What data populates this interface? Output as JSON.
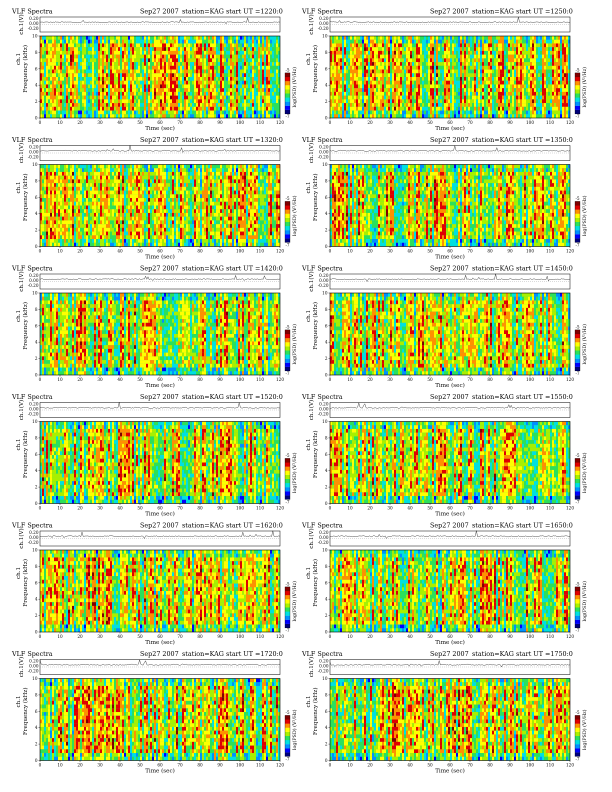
{
  "chart_data": [
    {
      "type": "heatmap",
      "title": "VLF Spectra",
      "date": "Sep27 2007",
      "station": "station=KAG",
      "start_ut": "start  UT =1220:0",
      "top_panel": {
        "ylabel": "ch.1(V)",
        "yticks": [
          "0.20",
          "0.00",
          "-0.20"
        ]
      },
      "ylabel_top": "ch.1",
      "ylabel": "Frequency (kHz)",
      "xlabel": "Time  (sec)",
      "xticks": [
        0,
        10,
        20,
        30,
        40,
        50,
        60,
        70,
        80,
        90,
        100,
        110,
        120
      ],
      "yticks": [
        0,
        2,
        4,
        6,
        8,
        10
      ],
      "xlim": [
        0,
        120
      ],
      "ylim": [
        0,
        10
      ],
      "colorbar_label": "log(PSD) (V²/Hz)"
    },
    {
      "type": "heatmap",
      "title": "VLF Spectra",
      "date": "Sep27 2007",
      "station": "station=KAG",
      "start_ut": "start  UT =1250:0",
      "top_panel": {
        "ylabel": "ch.1(V)",
        "yticks": [
          "0.20",
          "0.00",
          "-0.20"
        ]
      },
      "ylabel_top": "ch.1",
      "ylabel": "Frequency (kHz)",
      "xlabel": "Time  (sec)",
      "xticks": [
        0,
        10,
        20,
        30,
        40,
        50,
        60,
        70,
        80,
        90,
        100,
        110,
        120
      ],
      "yticks": [
        0,
        2,
        4,
        6,
        8,
        10
      ],
      "xlim": [
        0,
        120
      ],
      "ylim": [
        0,
        10
      ],
      "colorbar_label": "log(PSD) (V²/Hz)"
    },
    {
      "type": "heatmap",
      "title": "VLF Spectra",
      "date": "Sep27 2007",
      "station": "station=KAG",
      "start_ut": "start  UT =1320:0",
      "top_panel": {
        "ylabel": "ch.1(V)",
        "yticks": [
          "0.20",
          "0.00",
          "-0.20"
        ]
      },
      "ylabel_top": "ch.1",
      "ylabel": "Frequency (kHz)",
      "xlabel": "Time  (sec)",
      "xticks": [
        0,
        10,
        20,
        30,
        40,
        50,
        60,
        70,
        80,
        90,
        100,
        110,
        120
      ],
      "yticks": [
        0,
        2,
        4,
        6,
        8,
        10
      ],
      "xlim": [
        0,
        120
      ],
      "ylim": [
        0,
        10
      ],
      "colorbar_label": "log(PSD) (V²/Hz)"
    },
    {
      "type": "heatmap",
      "title": "VLF Spectra",
      "date": "Sep27 2007",
      "station": "station=KAG",
      "start_ut": "start  UT =1350:0",
      "top_panel": {
        "ylabel": "ch.1(V)",
        "yticks": [
          "0.20",
          "0.00",
          "-0.20"
        ]
      },
      "ylabel_top": "ch.1",
      "ylabel": "Frequency (kHz)",
      "xlabel": "Time  (sec)",
      "xticks": [
        0,
        10,
        20,
        30,
        40,
        50,
        60,
        70,
        80,
        90,
        100,
        110,
        120
      ],
      "yticks": [
        0,
        2,
        4,
        6,
        8,
        10
      ],
      "xlim": [
        0,
        120
      ],
      "ylim": [
        0,
        10
      ],
      "colorbar_label": "log(PSD) (V²/Hz)"
    },
    {
      "type": "heatmap",
      "title": "VLF Spectra",
      "date": "Sep27 2007",
      "station": "station=KAG",
      "start_ut": "start  UT =1420:0",
      "top_panel": {
        "ylabel": "ch.1(V)",
        "yticks": [
          "0.20",
          "0.00",
          "-0.20"
        ]
      },
      "ylabel_top": "ch.1",
      "ylabel": "Frequency (kHz)",
      "xlabel": "Time  (sec)",
      "xticks": [
        0,
        10,
        20,
        30,
        40,
        50,
        60,
        70,
        80,
        90,
        100,
        110,
        120
      ],
      "yticks": [
        0,
        2,
        4,
        6,
        8,
        10
      ],
      "xlim": [
        0,
        120
      ],
      "ylim": [
        0,
        10
      ],
      "colorbar_label": "log(PSD) (V²/Hz)"
    },
    {
      "type": "heatmap",
      "title": "VLF Spectra",
      "date": "Sep27 2007",
      "station": "station=KAG",
      "start_ut": "start  UT =1450:0",
      "top_panel": {
        "ylabel": "ch.1(V)",
        "yticks": [
          "0.20",
          "0.00",
          "-0.20"
        ]
      },
      "ylabel_top": "ch.1",
      "ylabel": "Frequency (kHz)",
      "xlabel": "Time  (sec)",
      "xticks": [
        0,
        10,
        20,
        30,
        40,
        50,
        60,
        70,
        80,
        90,
        100,
        110,
        120
      ],
      "yticks": [
        0,
        2,
        4,
        6,
        8,
        10
      ],
      "xlim": [
        0,
        120
      ],
      "ylim": [
        0,
        10
      ],
      "colorbar_label": "log(PSD) (V²/Hz)"
    },
    {
      "type": "heatmap",
      "title": "VLF Spectra",
      "date": "Sep27 2007",
      "station": "station=KAG",
      "start_ut": "start  UT =1520:0",
      "top_panel": {
        "ylabel": "ch.1(V)",
        "yticks": [
          "0.20",
          "0.00",
          "-0.20"
        ]
      },
      "ylabel_top": "ch.1",
      "ylabel": "Frequency (kHz)",
      "xlabel": "Time  (sec)",
      "xticks": [
        0,
        10,
        20,
        30,
        40,
        50,
        60,
        70,
        80,
        90,
        100,
        110,
        120
      ],
      "yticks": [
        0,
        2,
        4,
        6,
        8,
        10
      ],
      "xlim": [
        0,
        120
      ],
      "ylim": [
        0,
        10
      ],
      "colorbar_label": "log(PSD) (V²/Hz)"
    },
    {
      "type": "heatmap",
      "title": "VLF Spectra",
      "date": "Sep27 2007",
      "station": "station=KAG",
      "start_ut": "start  UT =1550:0",
      "top_panel": {
        "ylabel": "ch.1(V)",
        "yticks": [
          "0.20",
          "0.00",
          "-0.20"
        ]
      },
      "ylabel_top": "ch.1",
      "ylabel": "Frequency (kHz)",
      "xlabel": "Time  (sec)",
      "xticks": [
        0,
        10,
        20,
        30,
        40,
        50,
        60,
        70,
        80,
        90,
        100,
        110,
        120
      ],
      "yticks": [
        0,
        2,
        4,
        6,
        8,
        10
      ],
      "xlim": [
        0,
        120
      ],
      "ylim": [
        0,
        10
      ],
      "colorbar_label": "log(PSD) (V²/Hz)"
    },
    {
      "type": "heatmap",
      "title": "VLF Spectra",
      "date": "Sep27 2007",
      "station": "station=KAG",
      "start_ut": "start  UT =1620:0",
      "top_panel": {
        "ylabel": "ch.1(V)",
        "yticks": [
          "0.20",
          "0.00",
          "-0.20"
        ]
      },
      "ylabel_top": "ch.1",
      "ylabel": "Frequency (kHz)",
      "xlabel": "Time  (sec)",
      "xticks": [
        0,
        10,
        20,
        30,
        40,
        50,
        60,
        70,
        80,
        90,
        100,
        110,
        120
      ],
      "yticks": [
        0,
        2,
        4,
        6,
        8,
        10
      ],
      "xlim": [
        0,
        120
      ],
      "ylim": [
        0,
        10
      ],
      "colorbar_label": "log(PSD) (V²/Hz)"
    },
    {
      "type": "heatmap",
      "title": "VLF Spectra",
      "date": "Sep27 2007",
      "station": "station=KAG",
      "start_ut": "start  UT =1650:0",
      "top_panel": {
        "ylabel": "ch.1(V)",
        "yticks": [
          "0.20",
          "0.00",
          "-0.20"
        ]
      },
      "ylabel_top": "ch.1",
      "ylabel": "Frequency (kHz)",
      "xlabel": "Time  (sec)",
      "xticks": [
        0,
        10,
        20,
        30,
        40,
        50,
        60,
        70,
        80,
        90,
        100,
        110,
        120
      ],
      "yticks": [
        0,
        2,
        4,
        6,
        8,
        10
      ],
      "xlim": [
        0,
        120
      ],
      "ylim": [
        0,
        10
      ],
      "colorbar_label": "log(PSD) (V²/Hz)"
    },
    {
      "type": "heatmap",
      "title": "VLF Spectra",
      "date": "Sep27 2007",
      "station": "station=KAG",
      "start_ut": "start  UT =1720:0",
      "top_panel": {
        "ylabel": "ch.1(V)",
        "yticks": [
          "0.20",
          "0.00",
          "-0.20"
        ]
      },
      "ylabel_top": "ch.1",
      "ylabel": "Frequency (kHz)",
      "xlabel": "Time  (sec)",
      "xticks": [
        0,
        10,
        20,
        30,
        40,
        50,
        60,
        70,
        80,
        90,
        100,
        110,
        120
      ],
      "yticks": [
        0,
        2,
        4,
        6,
        8,
        10
      ],
      "xlim": [
        0,
        120
      ],
      "ylim": [
        0,
        10
      ],
      "colorbar_label": "log(PSD) (V²/Hz)"
    },
    {
      "type": "heatmap",
      "title": "VLF Spectra",
      "date": "Sep27 2007",
      "station": "station=KAG",
      "start_ut": "start  UT =1750:0",
      "top_panel": {
        "ylabel": "ch.1(V)",
        "yticks": [
          "0.20",
          "0.00",
          "-0.20"
        ]
      },
      "ylabel_top": "ch.1",
      "ylabel": "Frequency (kHz)",
      "xlabel": "Time  (sec)",
      "xticks": [
        0,
        10,
        20,
        30,
        40,
        50,
        60,
        70,
        80,
        90,
        100,
        110,
        120
      ],
      "yticks": [
        0,
        2,
        4,
        6,
        8,
        10
      ],
      "xlim": [
        0,
        120
      ],
      "ylim": [
        0,
        10
      ],
      "colorbar_label": "log(PSD) (V²/Hz)"
    }
  ],
  "colormap": [
    "#00007a",
    "#0000ff",
    "#0090ff",
    "#00e0e0",
    "#2ce05a",
    "#a8f000",
    "#ffff00",
    "#ff9000",
    "#e00000",
    "#800000"
  ],
  "colorbar_ticks": [
    "-5",
    "-7"
  ]
}
